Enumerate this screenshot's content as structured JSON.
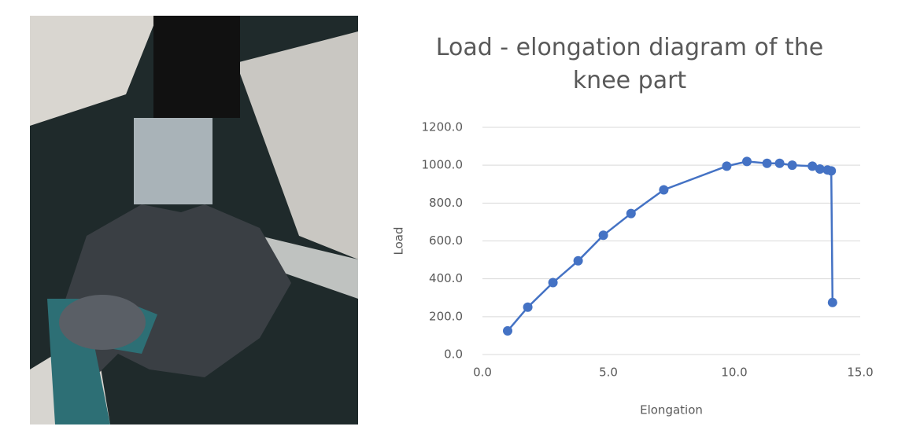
{
  "chart_data": {
    "type": "scatter-line",
    "title": "Load - elongation diagram of the knee part",
    "x_label": "Elongation",
    "y_label": "Load",
    "x": [
      1.0,
      1.8,
      2.8,
      3.8,
      4.8,
      5.9,
      7.2,
      9.7,
      10.5,
      11.3,
      11.8,
      12.3,
      13.1,
      13.4,
      13.7,
      13.85,
      13.9
    ],
    "values": [
      125,
      250,
      380,
      495,
      630,
      745,
      870,
      995,
      1020,
      1010,
      1010,
      1000,
      995,
      980,
      975,
      970,
      275
    ],
    "color": "#4472c4",
    "xlim": [
      0,
      15
    ],
    "ylim": [
      0,
      1200
    ],
    "xticks": [
      {
        "value": 0,
        "label": "0.0"
      },
      {
        "value": 5,
        "label": "5.0"
      },
      {
        "value": 10,
        "label": "10.0"
      },
      {
        "value": 15,
        "label": "15.0"
      }
    ],
    "yticks": [
      {
        "value": 0,
        "label": "0.0"
      },
      {
        "value": 200,
        "label": "200.0"
      },
      {
        "value": 400,
        "label": "400.0"
      },
      {
        "value": 600,
        "label": "600.0"
      },
      {
        "value": 800,
        "label": "800.0"
      },
      {
        "value": 1000,
        "label": "1000.0"
      },
      {
        "value": 1200,
        "label": "1200.0"
      }
    ],
    "grid": true
  }
}
